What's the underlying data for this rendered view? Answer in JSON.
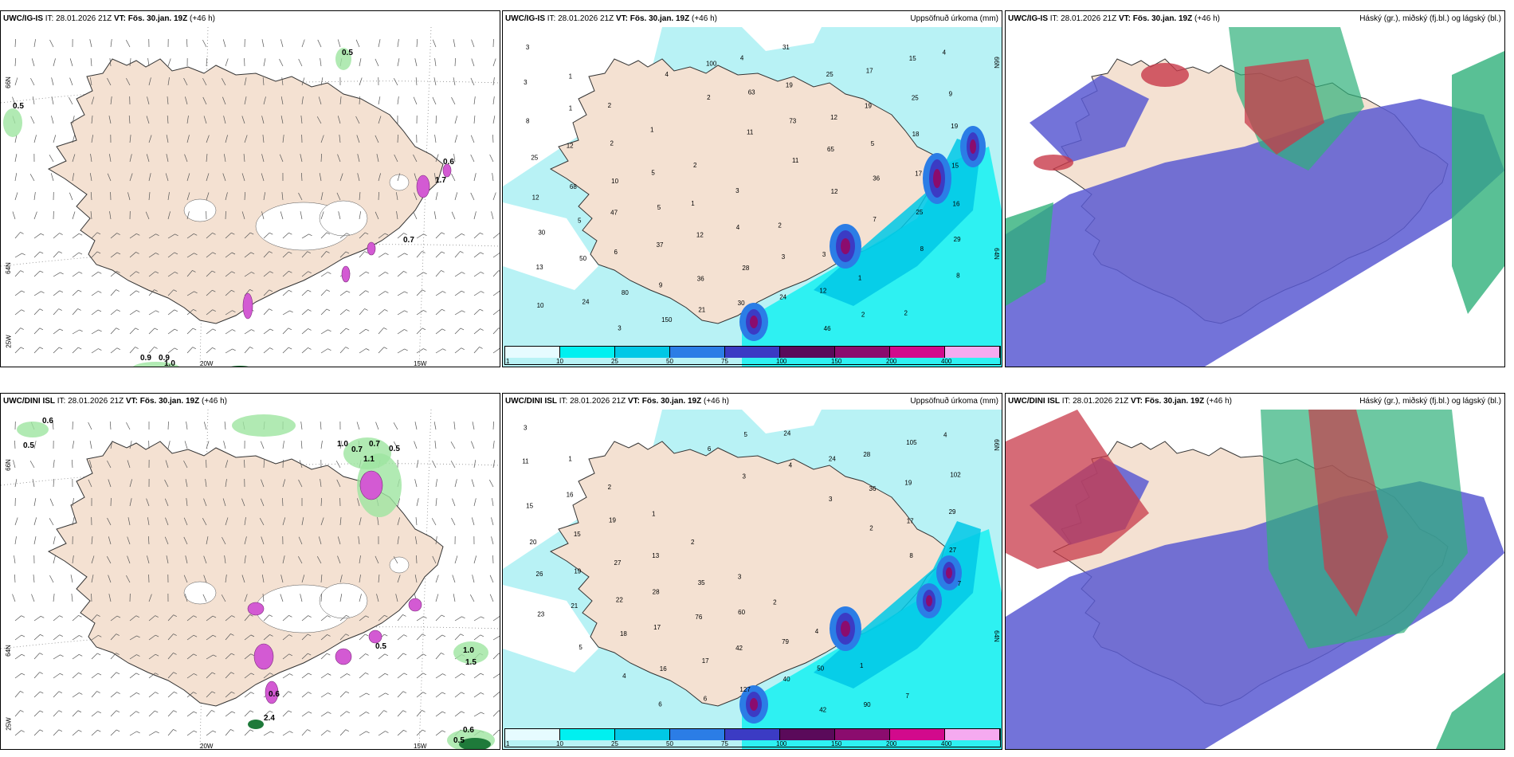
{
  "panels": [
    {
      "model": "UWC/IG-IS",
      "it_label": "IT:",
      "it_value": "28.01.2026 21Z",
      "vt_label": "VT:",
      "vt_value": "Fös. 30.jan. 19Z",
      "lead": "(+46 h)",
      "right_title": "",
      "type": "wind",
      "lon_labels": [
        "20W",
        "15W"
      ],
      "lat_labels": [
        "66N",
        "64N",
        "25W"
      ],
      "values": [
        "0.5",
        "0.5",
        "0.6",
        "1.7",
        "0.7",
        "0.9",
        "0.9",
        "1.0"
      ]
    },
    {
      "model": "UWC/IG-IS",
      "it_label": "IT:",
      "it_value": "28.01.2026 21Z",
      "vt_label": "VT:",
      "vt_value": "Fös. 30.jan. 19Z",
      "lead": "(+46 h)",
      "right_title": "Uppsöfnuð úrkoma (mm)",
      "type": "precip",
      "lon_labels": [],
      "lat_labels": [
        "66N",
        "64N"
      ],
      "values": [
        "3",
        "1",
        "2",
        "1",
        "2",
        "3",
        "2",
        "3",
        "1",
        "2",
        "4",
        "3",
        "1",
        "2",
        "5",
        "1",
        "4",
        "3",
        "12",
        "2",
        "15",
        "9",
        "8",
        "12",
        "10",
        "5",
        "12",
        "28",
        "24",
        "46",
        "17",
        "25",
        "19",
        "25",
        "68",
        "47",
        "37",
        "36",
        "30",
        "31",
        "25",
        "19",
        "18",
        "15",
        "12",
        "5",
        "6",
        "9",
        "21",
        "4",
        "19",
        "12",
        "5",
        "17",
        "16",
        "30",
        "50",
        "80",
        "150",
        "100",
        "63",
        "73",
        "65",
        "36",
        "25",
        "29",
        "13",
        "24",
        "3",
        "4",
        "2",
        "11",
        "11",
        "12",
        "7",
        "8",
        "8",
        "10"
      ]
    },
    {
      "model": "UWC/IG-IS",
      "it_label": "IT:",
      "it_value": "28.01.2026 21Z",
      "vt_label": "VT:",
      "vt_value": "Fös. 30.jan. 19Z",
      "lead": "(+46 h)",
      "right_title": "Háský (gr.), miðský (fj.bl.) og lágský (bl.)",
      "type": "cloud"
    },
    {
      "model": "UWC/DINI ISL",
      "it_label": "IT:",
      "it_value": "28.01.2026 21Z",
      "vt_label": "VT:",
      "vt_value": "Fös. 30.jan. 19Z",
      "lead": "(+46 h)",
      "right_title": "",
      "type": "wind",
      "lon_labels": [
        "20W",
        "15W"
      ],
      "lat_labels": [
        "66N",
        "64N",
        "25W"
      ],
      "values": [
        "0.6",
        "0.5",
        "1.0",
        "0.7",
        "0.7",
        "0.5",
        "1.1",
        "0.5",
        "1.0",
        "1.5",
        "0.6",
        "2.4",
        "0.6",
        "0.5"
      ]
    },
    {
      "model": "UWC/DINI ISL",
      "it_label": "IT:",
      "it_value": "28.01.2026 21Z",
      "vt_label": "VT:",
      "vt_value": "Fös. 30.jan. 19Z",
      "lead": "(+46 h)",
      "right_title": "Uppsöfnuð úrkoma (mm)",
      "type": "precip",
      "lon_labels": [],
      "lat_labels": [
        "66N",
        "64N"
      ],
      "values": [
        "3",
        "1",
        "2",
        "1",
        "2",
        "3",
        "2",
        "4",
        "1",
        "7",
        "4",
        "11",
        "16",
        "19",
        "13",
        "35",
        "60",
        "79",
        "50",
        "90",
        "105",
        "102",
        "15",
        "15",
        "27",
        "28",
        "76",
        "42",
        "40",
        "42",
        "28",
        "19",
        "29",
        "20",
        "19",
        "22",
        "17",
        "17",
        "127",
        "24",
        "24",
        "36",
        "17",
        "27",
        "26",
        "21",
        "18",
        "16",
        "6",
        "5",
        "4",
        "3",
        "2",
        "8",
        "7",
        "23",
        "5",
        "4",
        "6",
        "6",
        "3"
      ]
    },
    {
      "model": "UWC/DINI ISL",
      "it_label": "IT:",
      "it_value": "28.01.2026 21Z",
      "vt_label": "VT:",
      "vt_value": "Fös. 30.jan. 19Z",
      "lead": "(+46 h)",
      "right_title": "Háský (gr.), miðský (fj.bl.) og lágský (bl.)",
      "type": "cloud"
    }
  ],
  "colorbar": {
    "labels": [
      "1",
      "10",
      "25",
      "50",
      "75",
      "100",
      "150",
      "200",
      "400"
    ],
    "colors": [
      "#e6fbff",
      "#00f0f0",
      "#00c8e6",
      "#2b7de6",
      "#3b3bc4",
      "#5a0a5a",
      "#8b0c6e",
      "#d20a8c",
      "#f5aaf0"
    ]
  },
  "colors": {
    "land": "#f4e1d2",
    "ocean_precip": "#b8f2f5",
    "high_cloud": "#2fb07a",
    "mid_cloud": "#c83a4a",
    "low_cloud": "#5a5ad2"
  }
}
